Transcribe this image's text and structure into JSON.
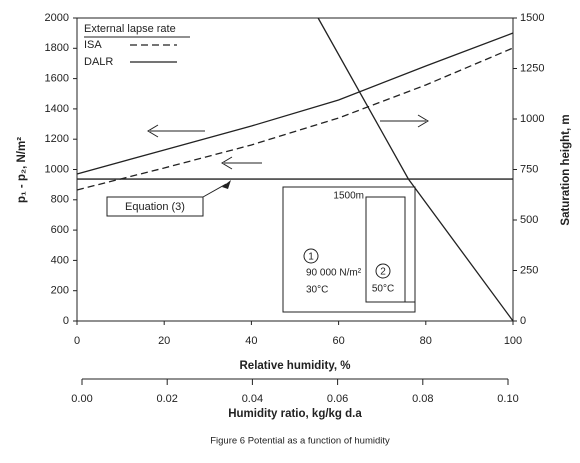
{
  "chart_data": {
    "type": "line",
    "xlabel": "Relative humidity, %",
    "ylabel": "p₁ - p₂, N/m²",
    "y2label": "Saturation height, m",
    "xlim": [
      0,
      100
    ],
    "xticks": [
      0,
      20,
      40,
      60,
      80,
      100
    ],
    "ylim": [
      0,
      2000
    ],
    "yticks": [
      0,
      200,
      400,
      600,
      800,
      1000,
      1200,
      1400,
      1600,
      1800,
      2000
    ],
    "y2lim": [
      0,
      1500
    ],
    "y2ticks": [
      0,
      250,
      500,
      750,
      1000,
      1250,
      1500
    ],
    "x2label": "Humidity ratio, kg/kg d.a",
    "x2lim": [
      0,
      0.1
    ],
    "x2ticks": [
      {
        "value": 0,
        "label": "0.00"
      },
      0.02,
      0.04,
      0.06,
      0.08,
      {
        "value": 0.1,
        "label": "0.10"
      }
    ],
    "legend": {
      "title": "External lapse rate"
    },
    "series": [
      {
        "name": "ISA",
        "color": "#222",
        "dash": true,
        "x": [
          0,
          20,
          40,
          60,
          80,
          100
        ],
        "values": [
          865,
          1010,
          1162,
          1340,
          1558,
          1802
        ]
      },
      {
        "name": "DALR",
        "color": "#222",
        "x": [
          0,
          20,
          40,
          60,
          80,
          100
        ],
        "values": [
          970,
          1129,
          1287,
          1459,
          1683,
          1901
        ]
      },
      {
        "name": "Equation (3)",
        "color": "#222",
        "boxed": true,
        "x": [
          0,
          100
        ],
        "values": [
          937,
          937
        ]
      },
      {
        "color": "#222",
        "axis": "y2",
        "x": [
          55.3,
          76,
          100
        ],
        "values": [
          1500,
          703,
          0
        ]
      }
    ],
    "inset": {
      "height": "1500m",
      "state1": "1",
      "pressure": "90 000 N/m²",
      "temp1": "30°C",
      "state2": "2",
      "temp2": "50°C"
    },
    "caption": "Figure 6  Potential as a function of humidity"
  }
}
